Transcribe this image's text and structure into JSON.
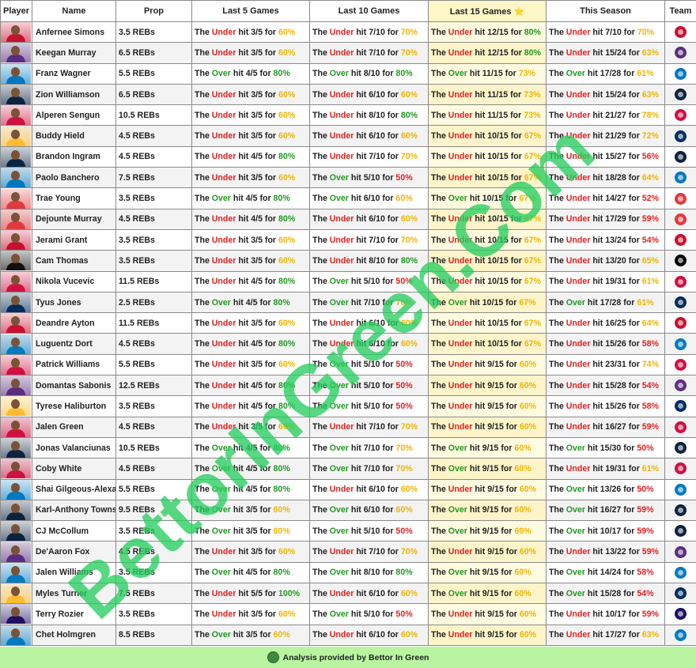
{
  "headers": [
    "Player",
    "Name",
    "Prop",
    "Last 5 Games",
    "Last 10 Games",
    "Last 15 Games",
    "This Season",
    "Team"
  ],
  "highlight_header_star": "⭐",
  "rows": [
    {
      "name": "Anfernee Simons",
      "prop": "3.5 REBs",
      "l5": {
        "t": "Under",
        "h": "3/5",
        "p": "60%"
      },
      "l10": {
        "t": "Under",
        "h": "7/10",
        "p": "70%"
      },
      "l15": {
        "t": "Under",
        "h": "12/15",
        "p": "80%"
      },
      "season": {
        "t": "Under",
        "h": "7/10",
        "p": "70%"
      },
      "team_icon": "blazers-logo",
      "team_color": "#c8102e",
      "avatar_color": "#c8102e"
    },
    {
      "name": "Keegan Murray",
      "prop": "6.5 REBs",
      "l5": {
        "t": "Under",
        "h": "3/5",
        "p": "60%"
      },
      "l10": {
        "t": "Under",
        "h": "7/10",
        "p": "70%"
      },
      "l15": {
        "t": "Under",
        "h": "12/15",
        "p": "80%"
      },
      "season": {
        "t": "Under",
        "h": "15/24",
        "p": "63%"
      },
      "team_icon": "kings-logo",
      "team_color": "#5a2d81",
      "avatar_color": "#5a2d81"
    },
    {
      "name": "Franz Wagner",
      "prop": "5.5 REBs",
      "l5": {
        "t": "Over",
        "h": "4/5",
        "p": "80%"
      },
      "l10": {
        "t": "Over",
        "h": "8/10",
        "p": "80%"
      },
      "l15": {
        "t": "Over",
        "h": "11/15",
        "p": "73%"
      },
      "season": {
        "t": "Over",
        "h": "17/28",
        "p": "61%"
      },
      "team_icon": "magic-logo",
      "team_color": "#0077c0",
      "avatar_color": "#0077c0"
    },
    {
      "name": "Zion Williamson",
      "prop": "6.5 REBs",
      "l5": {
        "t": "Under",
        "h": "3/5",
        "p": "60%"
      },
      "l10": {
        "t": "Under",
        "h": "6/10",
        "p": "60%"
      },
      "l15": {
        "t": "Under",
        "h": "11/15",
        "p": "73%"
      },
      "season": {
        "t": "Under",
        "h": "15/24",
        "p": "63%"
      },
      "team_icon": "pelicans-logo",
      "team_color": "#0c2340",
      "avatar_color": "#0c2340"
    },
    {
      "name": "Alperen Sengun",
      "prop": "10.5 REBs",
      "l5": {
        "t": "Under",
        "h": "3/5",
        "p": "60%"
      },
      "l10": {
        "t": "Under",
        "h": "8/10",
        "p": "80%"
      },
      "l15": {
        "t": "Under",
        "h": "11/15",
        "p": "73%"
      },
      "season": {
        "t": "Under",
        "h": "21/27",
        "p": "78%"
      },
      "team_icon": "rockets-logo",
      "team_color": "#ce1141",
      "avatar_color": "#ce1141"
    },
    {
      "name": "Buddy Hield",
      "prop": "4.5 REBs",
      "l5": {
        "t": "Under",
        "h": "3/5",
        "p": "60%"
      },
      "l10": {
        "t": "Under",
        "h": "6/10",
        "p": "60%"
      },
      "l15": {
        "t": "Under",
        "h": "10/15",
        "p": "67%"
      },
      "season": {
        "t": "Under",
        "h": "21/29",
        "p": "72%"
      },
      "team_icon": "pacers-logo",
      "team_color": "#002d62",
      "avatar_color": "#fdbb30"
    },
    {
      "name": "Brandon Ingram",
      "prop": "4.5 REBs",
      "l5": {
        "t": "Under",
        "h": "4/5",
        "p": "80%"
      },
      "l10": {
        "t": "Under",
        "h": "7/10",
        "p": "70%"
      },
      "l15": {
        "t": "Under",
        "h": "10/15",
        "p": "67%"
      },
      "season": {
        "t": "Under",
        "h": "15/27",
        "p": "56%"
      },
      "team_icon": "pelicans-logo",
      "team_color": "#0c2340",
      "avatar_color": "#0c2340"
    },
    {
      "name": "Paolo Banchero",
      "prop": "7.5 REBs",
      "l5": {
        "t": "Under",
        "h": "3/5",
        "p": "60%"
      },
      "l10": {
        "t": "Over",
        "h": "5/10",
        "p": "50%"
      },
      "l15": {
        "t": "Under",
        "h": "10/15",
        "p": "67%"
      },
      "season": {
        "t": "Under",
        "h": "18/28",
        "p": "64%"
      },
      "team_icon": "magic-logo",
      "team_color": "#0077c0",
      "avatar_color": "#0077c0"
    },
    {
      "name": "Trae Young",
      "prop": "3.5 REBs",
      "l5": {
        "t": "Over",
        "h": "4/5",
        "p": "80%"
      },
      "l10": {
        "t": "Over",
        "h": "6/10",
        "p": "60%"
      },
      "l15": {
        "t": "Over",
        "h": "10/15",
        "p": "67%"
      },
      "season": {
        "t": "Under",
        "h": "14/27",
        "p": "52%"
      },
      "team_icon": "hawks-logo",
      "team_color": "#e03a3e",
      "avatar_color": "#e03a3e"
    },
    {
      "name": "Dejounte Murray",
      "prop": "4.5 REBs",
      "l5": {
        "t": "Under",
        "h": "4/5",
        "p": "80%"
      },
      "l10": {
        "t": "Under",
        "h": "6/10",
        "p": "60%"
      },
      "l15": {
        "t": "Under",
        "h": "10/15",
        "p": "67%"
      },
      "season": {
        "t": "Under",
        "h": "17/29",
        "p": "59%"
      },
      "team_icon": "hawks-logo",
      "team_color": "#e03a3e",
      "avatar_color": "#e03a3e"
    },
    {
      "name": "Jerami Grant",
      "prop": "3.5 REBs",
      "l5": {
        "t": "Under",
        "h": "3/5",
        "p": "60%"
      },
      "l10": {
        "t": "Under",
        "h": "7/10",
        "p": "70%"
      },
      "l15": {
        "t": "Under",
        "h": "10/15",
        "p": "67%"
      },
      "season": {
        "t": "Under",
        "h": "13/24",
        "p": "54%"
      },
      "team_icon": "blazers-logo",
      "team_color": "#c8102e",
      "avatar_color": "#c8102e"
    },
    {
      "name": "Cam Thomas",
      "prop": "3.5 REBs",
      "l5": {
        "t": "Under",
        "h": "3/5",
        "p": "60%"
      },
      "l10": {
        "t": "Under",
        "h": "8/10",
        "p": "80%"
      },
      "l15": {
        "t": "Under",
        "h": "10/15",
        "p": "67%"
      },
      "season": {
        "t": "Under",
        "h": "13/20",
        "p": "65%"
      },
      "team_icon": "nets-logo",
      "team_color": "#000000",
      "avatar_color": "#111111"
    },
    {
      "name": "Nikola Vucevic",
      "prop": "11.5 REBs",
      "l5": {
        "t": "Under",
        "h": "4/5",
        "p": "80%"
      },
      "l10": {
        "t": "Over",
        "h": "5/10",
        "p": "50%"
      },
      "l15": {
        "t": "Under",
        "h": "10/15",
        "p": "67%"
      },
      "season": {
        "t": "Under",
        "h": "19/31",
        "p": "61%"
      },
      "team_icon": "bulls-logo",
      "team_color": "#ce1141",
      "avatar_color": "#ce1141"
    },
    {
      "name": "Tyus Jones",
      "prop": "2.5 REBs",
      "l5": {
        "t": "Over",
        "h": "4/5",
        "p": "80%"
      },
      "l10": {
        "t": "Over",
        "h": "7/10",
        "p": "70%"
      },
      "l15": {
        "t": "Over",
        "h": "10/15",
        "p": "67%"
      },
      "season": {
        "t": "Over",
        "h": "17/28",
        "p": "61%"
      },
      "team_icon": "wizards-logo",
      "team_color": "#002b5c",
      "avatar_color": "#002b5c"
    },
    {
      "name": "Deandre Ayton",
      "prop": "11.5 REBs",
      "l5": {
        "t": "Under",
        "h": "3/5",
        "p": "60%"
      },
      "l10": {
        "t": "Under",
        "h": "6/10",
        "p": "60%"
      },
      "l15": {
        "t": "Under",
        "h": "10/15",
        "p": "67%"
      },
      "season": {
        "t": "Under",
        "h": "16/25",
        "p": "64%"
      },
      "team_icon": "blazers-logo",
      "team_color": "#c8102e",
      "avatar_color": "#c8102e"
    },
    {
      "name": "Luguentz Dort",
      "prop": "4.5 REBs",
      "l5": {
        "t": "Under",
        "h": "4/5",
        "p": "80%"
      },
      "l10": {
        "t": "Under",
        "h": "6/10",
        "p": "60%"
      },
      "l15": {
        "t": "Under",
        "h": "10/15",
        "p": "67%"
      },
      "season": {
        "t": "Under",
        "h": "15/26",
        "p": "58%"
      },
      "team_icon": "thunder-logo",
      "team_color": "#007ac1",
      "avatar_color": "#007ac1"
    },
    {
      "name": "Patrick Williams",
      "prop": "5.5 REBs",
      "l5": {
        "t": "Under",
        "h": "3/5",
        "p": "60%"
      },
      "l10": {
        "t": "Over",
        "h": "5/10",
        "p": "50%"
      },
      "l15": {
        "t": "Under",
        "h": "9/15",
        "p": "60%"
      },
      "season": {
        "t": "Under",
        "h": "23/31",
        "p": "74%"
      },
      "team_icon": "bulls-logo",
      "team_color": "#ce1141",
      "avatar_color": "#ce1141"
    },
    {
      "name": "Domantas Sabonis",
      "prop": "12.5 REBs",
      "l5": {
        "t": "Under",
        "h": "4/5",
        "p": "80%"
      },
      "l10": {
        "t": "Over",
        "h": "5/10",
        "p": "50%"
      },
      "l15": {
        "t": "Under",
        "h": "9/15",
        "p": "60%"
      },
      "season": {
        "t": "Under",
        "h": "15/28",
        "p": "54%"
      },
      "team_icon": "kings-logo",
      "team_color": "#5a2d81",
      "avatar_color": "#5a2d81"
    },
    {
      "name": "Tyrese Haliburton",
      "prop": "3.5 REBs",
      "l5": {
        "t": "Under",
        "h": "4/5",
        "p": "80%"
      },
      "l10": {
        "t": "Over",
        "h": "5/10",
        "p": "50%"
      },
      "l15": {
        "t": "Under",
        "h": "9/15",
        "p": "60%"
      },
      "season": {
        "t": "Under",
        "h": "15/26",
        "p": "58%"
      },
      "team_icon": "pacers-logo",
      "team_color": "#002d62",
      "avatar_color": "#fdbb30"
    },
    {
      "name": "Jalen Green",
      "prop": "4.5 REBs",
      "l5": {
        "t": "Under",
        "h": "3/5",
        "p": "60%"
      },
      "l10": {
        "t": "Under",
        "h": "7/10",
        "p": "70%"
      },
      "l15": {
        "t": "Under",
        "h": "9/15",
        "p": "60%"
      },
      "season": {
        "t": "Under",
        "h": "16/27",
        "p": "59%"
      },
      "team_icon": "rockets-logo",
      "team_color": "#ce1141",
      "avatar_color": "#ce1141"
    },
    {
      "name": "Jonas Valanciunas",
      "prop": "10.5 REBs",
      "l5": {
        "t": "Over",
        "h": "4/5",
        "p": "80%"
      },
      "l10": {
        "t": "Over",
        "h": "7/10",
        "p": "70%"
      },
      "l15": {
        "t": "Over",
        "h": "9/15",
        "p": "60%"
      },
      "season": {
        "t": "Over",
        "h": "15/30",
        "p": "50%"
      },
      "team_icon": "pelicans-logo",
      "team_color": "#0c2340",
      "avatar_color": "#0c2340"
    },
    {
      "name": "Coby White",
      "prop": "4.5 REBs",
      "l5": {
        "t": "Over",
        "h": "4/5",
        "p": "80%"
      },
      "l10": {
        "t": "Over",
        "h": "7/10",
        "p": "70%"
      },
      "l15": {
        "t": "Over",
        "h": "9/15",
        "p": "60%"
      },
      "season": {
        "t": "Under",
        "h": "19/31",
        "p": "61%"
      },
      "team_icon": "bulls-logo",
      "team_color": "#ce1141",
      "avatar_color": "#ce1141"
    },
    {
      "name": "Shai Gilgeous-Alexander",
      "prop": "5.5 REBs",
      "l5": {
        "t": "Over",
        "h": "4/5",
        "p": "80%"
      },
      "l10": {
        "t": "Under",
        "h": "6/10",
        "p": "60%"
      },
      "l15": {
        "t": "Under",
        "h": "9/15",
        "p": "60%"
      },
      "season": {
        "t": "Over",
        "h": "13/26",
        "p": "50%"
      },
      "team_icon": "thunder-logo",
      "team_color": "#007ac1",
      "avatar_color": "#007ac1"
    },
    {
      "name": "Karl-Anthony Towns",
      "prop": "9.5 REBs",
      "l5": {
        "t": "Over",
        "h": "3/5",
        "p": "60%"
      },
      "l10": {
        "t": "Over",
        "h": "6/10",
        "p": "60%"
      },
      "l15": {
        "t": "Over",
        "h": "9/15",
        "p": "60%"
      },
      "season": {
        "t": "Over",
        "h": "16/27",
        "p": "59%"
      },
      "team_icon": "timberwolves-logo",
      "team_color": "#0c2340",
      "avatar_color": "#0c2340"
    },
    {
      "name": "CJ McCollum",
      "prop": "3.5 REBs",
      "l5": {
        "t": "Over",
        "h": "3/5",
        "p": "60%"
      },
      "l10": {
        "t": "Over",
        "h": "5/10",
        "p": "50%"
      },
      "l15": {
        "t": "Over",
        "h": "9/15",
        "p": "60%"
      },
      "season": {
        "t": "Over",
        "h": "10/17",
        "p": "59%"
      },
      "team_icon": "pelicans-logo",
      "team_color": "#0c2340",
      "avatar_color": "#0c2340"
    },
    {
      "name": "De'Aaron Fox",
      "prop": "4.5 REBs",
      "l5": {
        "t": "Under",
        "h": "3/5",
        "p": "60%"
      },
      "l10": {
        "t": "Under",
        "h": "7/10",
        "p": "70%"
      },
      "l15": {
        "t": "Under",
        "h": "9/15",
        "p": "60%"
      },
      "season": {
        "t": "Under",
        "h": "13/22",
        "p": "59%"
      },
      "team_icon": "kings-logo",
      "team_color": "#5a2d81",
      "avatar_color": "#5a2d81"
    },
    {
      "name": "Jalen Williams",
      "prop": "3.5 REBs",
      "l5": {
        "t": "Over",
        "h": "4/5",
        "p": "80%"
      },
      "l10": {
        "t": "Over",
        "h": "8/10",
        "p": "80%"
      },
      "l15": {
        "t": "Over",
        "h": "9/15",
        "p": "60%"
      },
      "season": {
        "t": "Over",
        "h": "14/24",
        "p": "58%"
      },
      "team_icon": "thunder-logo",
      "team_color": "#007ac1",
      "avatar_color": "#007ac1"
    },
    {
      "name": "Myles Turner",
      "prop": "7.5 REBs",
      "l5": {
        "t": "Under",
        "h": "5/5",
        "p": "100%"
      },
      "l10": {
        "t": "Under",
        "h": "6/10",
        "p": "60%"
      },
      "l15": {
        "t": "Over",
        "h": "9/15",
        "p": "60%"
      },
      "season": {
        "t": "Over",
        "h": "15/28",
        "p": "54%"
      },
      "team_icon": "pacers-logo",
      "team_color": "#002d62",
      "avatar_color": "#fdbb30"
    },
    {
      "name": "Terry Rozier",
      "prop": "3.5 REBs",
      "l5": {
        "t": "Under",
        "h": "3/5",
        "p": "60%"
      },
      "l10": {
        "t": "Over",
        "h": "5/10",
        "p": "50%"
      },
      "l15": {
        "t": "Under",
        "h": "9/15",
        "p": "60%"
      },
      "season": {
        "t": "Under",
        "h": "10/17",
        "p": "59%"
      },
      "team_icon": "hornets-logo",
      "team_color": "#1d1160",
      "avatar_color": "#1d1160"
    },
    {
      "name": "Chet Holmgren",
      "prop": "8.5 REBs",
      "l5": {
        "t": "Over",
        "h": "3/5",
        "p": "60%"
      },
      "l10": {
        "t": "Under",
        "h": "6/10",
        "p": "60%"
      },
      "l15": {
        "t": "Under",
        "h": "9/15",
        "p": "60%"
      },
      "season": {
        "t": "Under",
        "h": "17/27",
        "p": "63%"
      },
      "team_icon": "thunder-logo",
      "team_color": "#007ac1",
      "avatar_color": "#007ac1"
    }
  ],
  "footer": {
    "icon": "bettor-logo-icon",
    "text": "Analysis provided by Bettor In Green"
  },
  "watermark": "BettorInGreen.Com"
}
